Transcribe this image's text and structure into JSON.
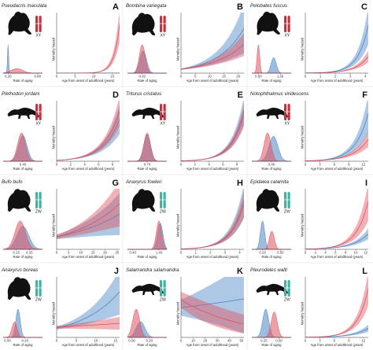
{
  "colors": {
    "male": "#4a86c5",
    "female": "#e0525e",
    "xy_chrom": "#c9303c",
    "zw_chrom": "#3fb3a3",
    "silhouette": "#111111"
  },
  "chart_data": [
    {
      "panel": "A",
      "species": "Pseudacris maculata",
      "sex_system": "XY",
      "type": "area",
      "xlabel_left": "Rate of aging",
      "xlabel_right": "Age from onset of adulthood (years)",
      "ylabel_right": "Mortality hazard",
      "rate_ticks": [
        "0.20",
        "0.80"
      ],
      "rate_range": [
        0.1,
        0.9
      ],
      "female_rate": {
        "mu": 0.38,
        "sd": 0.12,
        "h": 0.16
      },
      "male_rate": {
        "mu": 0.2,
        "sd": 0.012,
        "h": 1.0
      },
      "age_ticks": [
        "0",
        "5",
        "10",
        "15"
      ],
      "age_range": [
        0,
        17
      ],
      "female_hazard": {
        "a": 0.02,
        "b": 0.65,
        "band": 0.35
      },
      "male_hazard": {
        "a": 0.02,
        "b": 0.12,
        "band": 0.25
      }
    },
    {
      "panel": "B",
      "species": "Bombina variegata",
      "sex_system": "XY",
      "type": "area",
      "xlabel_left": "Rate of aging",
      "xlabel_right": "Age from onset of adulthood (years)",
      "ylabel_right": "Mortality hazard",
      "rate_ticks": [
        "0.20"
      ],
      "rate_range": [
        0.05,
        0.45
      ],
      "female_rate": {
        "mu": 0.2,
        "sd": 0.03,
        "h": 0.95
      },
      "male_rate": {
        "mu": 0.21,
        "sd": 0.034,
        "h": 0.75
      },
      "age_ticks": [
        "0",
        "5",
        "10",
        "15",
        "20"
      ],
      "age_range": [
        0,
        22
      ],
      "female_hazard": {
        "a": 0.15,
        "b": 0.09,
        "band": 0.4
      },
      "male_hazard": {
        "a": 0.15,
        "b": 0.11,
        "band": 0.55
      }
    },
    {
      "panel": "C",
      "species": "Pelobates fuscus",
      "sex_system": "XY",
      "type": "area",
      "xlabel_left": "Rate of aging",
      "xlabel_right": "Age from onset of adulthood (years)",
      "ylabel_right": "Mortality hazard",
      "rate_ticks": [
        "0.50",
        "1.50"
      ],
      "rate_range": [
        0.2,
        2.0
      ],
      "female_rate": {
        "mu": 0.5,
        "sd": 0.06,
        "h": 1.0
      },
      "male_rate": {
        "mu": 1.2,
        "sd": 0.12,
        "h": 0.55
      },
      "age_ticks": [
        "0",
        "1",
        "2",
        "3",
        "4"
      ],
      "age_range": [
        0,
        4.2
      ],
      "female_hazard": {
        "a": 0.02,
        "b": 1.2,
        "band": 0.35
      },
      "male_hazard": {
        "a": 0.02,
        "b": 1.45,
        "band": 0.4
      }
    },
    {
      "panel": "D",
      "species": "Plethodon jordani",
      "sex_system": "XY",
      "type": "area",
      "xlabel_left": "Rate of aging",
      "xlabel_right": "Age from onset of adulthood (years)",
      "ylabel_right": "Mortality hazard",
      "rate_ticks": [
        "0.45"
      ],
      "rate_range": [
        0.3,
        0.6
      ],
      "female_rate": {
        "mu": 0.44,
        "sd": 0.03,
        "h": 0.9
      },
      "male_rate": {
        "mu": 0.45,
        "sd": 0.032,
        "h": 0.82
      },
      "age_ticks": [
        "0",
        "2",
        "4",
        "6",
        "8"
      ],
      "age_range": [
        0,
        9
      ],
      "female_hazard": {
        "a": 0.05,
        "b": 0.45,
        "band": 0.3
      },
      "male_hazard": {
        "a": 0.05,
        "b": 0.43,
        "band": 0.35
      }
    },
    {
      "panel": "E",
      "species": "Triturus cristatus",
      "sex_system": "XY",
      "type": "area",
      "xlabel_left": "Rate of aging",
      "xlabel_right": "Age from onset of adulthood (years)",
      "ylabel_right": "Mortality hazard",
      "rate_ticks": [
        "0.70"
      ],
      "rate_range": [
        0.55,
        0.85
      ],
      "female_rate": {
        "mu": 0.7,
        "sd": 0.025,
        "h": 0.95
      },
      "male_rate": {
        "mu": 0.7,
        "sd": 0.026,
        "h": 0.9
      },
      "age_ticks": [
        "0",
        "2",
        "4",
        "6",
        "8"
      ],
      "age_range": [
        0,
        9
      ],
      "female_hazard": {
        "a": 0.04,
        "b": 0.55,
        "band": 0.25
      },
      "male_hazard": {
        "a": 0.04,
        "b": 0.56,
        "band": 0.28
      }
    },
    {
      "panel": "F",
      "species": "Notophthalmus viridescens",
      "sex_system": "XY",
      "type": "area",
      "xlabel_left": "Rate of aging",
      "xlabel_right": "Age from onset of adulthood (years)",
      "ylabel_right": "Mortality hazard",
      "rate_ticks": [
        "0.40"
      ],
      "rate_range": [
        0.2,
        0.6
      ],
      "female_rate": {
        "mu": 0.36,
        "sd": 0.035,
        "h": 0.85
      },
      "male_rate": {
        "mu": 0.42,
        "sd": 0.045,
        "h": 0.75
      },
      "age_ticks": [
        "0",
        "3",
        "6",
        "9",
        "12"
      ],
      "age_range": [
        0,
        13
      ],
      "female_hazard": {
        "a": 0.03,
        "b": 0.32,
        "band": 0.35
      },
      "male_hazard": {
        "a": 0.03,
        "b": 0.38,
        "band": 0.4
      }
    },
    {
      "panel": "G",
      "species": "Bufo bufo",
      "sex_system": "ZW",
      "type": "area",
      "xlabel_left": "Rate of aging",
      "xlabel_right": "Age from onset of adulthood (years)",
      "ylabel_right": "Mortality hazard",
      "rate_ticks": [
        "0.15",
        "0.25"
      ],
      "rate_range": [
        0.05,
        0.35
      ],
      "female_rate": {
        "mu": 0.18,
        "sd": 0.04,
        "h": 0.55
      },
      "male_rate": {
        "mu": 0.2,
        "sd": 0.045,
        "h": 0.45
      },
      "age_ticks": [
        "0",
        "5",
        "10",
        "15",
        "20",
        "25"
      ],
      "age_range": [
        0,
        26
      ],
      "female_hazard": {
        "a": 0.3,
        "b": 0.05,
        "band": 0.5
      },
      "male_hazard": {
        "a": 0.3,
        "b": 0.04,
        "band": 0.6
      }
    },
    {
      "panel": "H",
      "species": "Anaxyrus fowleri",
      "sex_system": "ZW",
      "type": "area",
      "xlabel_left": "Rate of aging",
      "xlabel_right": "Age from onset of adulthood (years)",
      "ylabel_right": "Mortality hazard",
      "rate_ticks": [
        "0.40",
        "1.40"
      ],
      "rate_range": [
        0.2,
        1.7
      ],
      "female_rate": {
        "mu": 1.4,
        "sd": 0.1,
        "h": 0.6
      },
      "male_rate": {
        "mu": 1.45,
        "sd": 0.1,
        "h": 0.55
      },
      "age_ticks": [
        "0",
        "1",
        "2",
        "3",
        "4"
      ],
      "age_range": [
        0,
        4.3
      ],
      "female_hazard": {
        "a": 0.05,
        "b": 1.1,
        "band": 0.3
      },
      "male_hazard": {
        "a": 0.05,
        "b": 1.12,
        "band": 0.35
      }
    },
    {
      "panel": "I",
      "species": "Epidalea calamita",
      "sex_system": "ZW",
      "type": "area",
      "xlabel_left": "Rate of aging",
      "xlabel_right": "Age from onset of adulthood (years)",
      "ylabel_right": "Mortality hazard",
      "rate_ticks": [
        "0.25",
        "0.50"
      ],
      "rate_range": [
        0.1,
        0.65
      ],
      "female_rate": {
        "mu": 0.38,
        "sd": 0.035,
        "h": 0.45
      },
      "male_rate": {
        "mu": 0.25,
        "sd": 0.03,
        "h": 0.7
      },
      "age_ticks": [
        "0",
        "2",
        "4",
        "6",
        "8",
        "10",
        "12"
      ],
      "age_range": [
        0,
        12.5
      ],
      "female_hazard": {
        "a": 0.03,
        "b": 0.42,
        "band": 0.4
      },
      "male_hazard": {
        "a": 0.03,
        "b": 0.33,
        "band": 0.35
      }
    },
    {
      "panel": "J",
      "species": "Anaxyrus boreas",
      "sex_system": "ZW",
      "type": "area",
      "xlabel_left": "Rate of aging",
      "xlabel_right": "Age from onset of adulthood (years)",
      "ylabel_right": "Mortality hazard",
      "rate_ticks": [
        "0.00",
        "0.20"
      ],
      "rate_range": [
        -0.05,
        0.4
      ],
      "female_rate": {
        "mu": 0.08,
        "sd": 0.03,
        "h": 0.3
      },
      "male_rate": {
        "mu": 0.12,
        "sd": 0.025,
        "h": 0.55
      },
      "age_ticks": [
        "0",
        "5",
        "10",
        "15"
      ],
      "age_range": [
        0,
        16
      ],
      "female_hazard": {
        "a": 0.5,
        "b": 0.02,
        "band": 0.45
      },
      "male_hazard": {
        "a": 0.45,
        "b": 0.1,
        "band": 0.5
      }
    },
    {
      "panel": "K",
      "species": "Salamandra salamandra",
      "sex_system": "ZW",
      "type": "area",
      "xlabel_left": "Rate of aging",
      "xlabel_right": "Age from onset of adulthood (years)",
      "ylabel_right": "Mortality hazard",
      "rate_ticks": [
        "0.00",
        "0.20"
      ],
      "rate_range": [
        -0.05,
        0.4
      ],
      "female_rate": {
        "mu": 0.05,
        "sd": 0.04,
        "h": 0.45
      },
      "male_rate": {
        "mu": 0.1,
        "sd": 0.05,
        "h": 0.25
      },
      "age_ticks": [
        "0",
        "10",
        "20",
        "30",
        "40",
        "50"
      ],
      "age_range": [
        0,
        52
      ],
      "female_hazard": {
        "a": 0.7,
        "b": -0.02,
        "band": 0.7
      },
      "male_hazard": {
        "a": 0.55,
        "b": 0.005,
        "band": 0.9
      }
    },
    {
      "panel": "L",
      "species": "Pleurodeles waltl",
      "sex_system": "ZW",
      "type": "area",
      "xlabel_left": "Rate of aging",
      "xlabel_right": "Age from onset of adulthood (years)",
      "ylabel_right": "Mortality hazard",
      "rate_ticks": [
        "0.25",
        "0.50"
      ],
      "rate_range": [
        0.05,
        0.7
      ],
      "female_rate": {
        "mu": 0.42,
        "sd": 0.05,
        "h": 0.45
      },
      "male_rate": {
        "mu": 0.28,
        "sd": 0.05,
        "h": 0.5
      },
      "age_ticks": [
        "0",
        "3",
        "6",
        "9",
        "12"
      ],
      "age_range": [
        0,
        13
      ],
      "female_hazard": {
        "a": 0.02,
        "b": 0.45,
        "band": 0.35
      },
      "male_hazard": {
        "a": 0.02,
        "b": 0.32,
        "band": 0.4
      }
    }
  ]
}
